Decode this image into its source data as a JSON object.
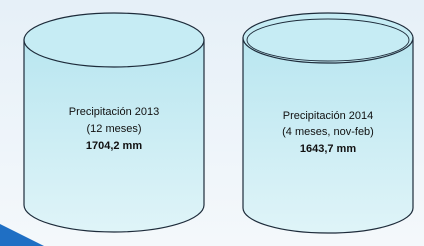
{
  "cylinders": [
    {
      "title": "Precipitación 2013",
      "period": "(12 meses)",
      "amount": "1704,2 mm"
    },
    {
      "title": "Precipitación 2014",
      "period": "(4 meses, nov-feb)",
      "amount": "1643,7 mm"
    }
  ]
}
